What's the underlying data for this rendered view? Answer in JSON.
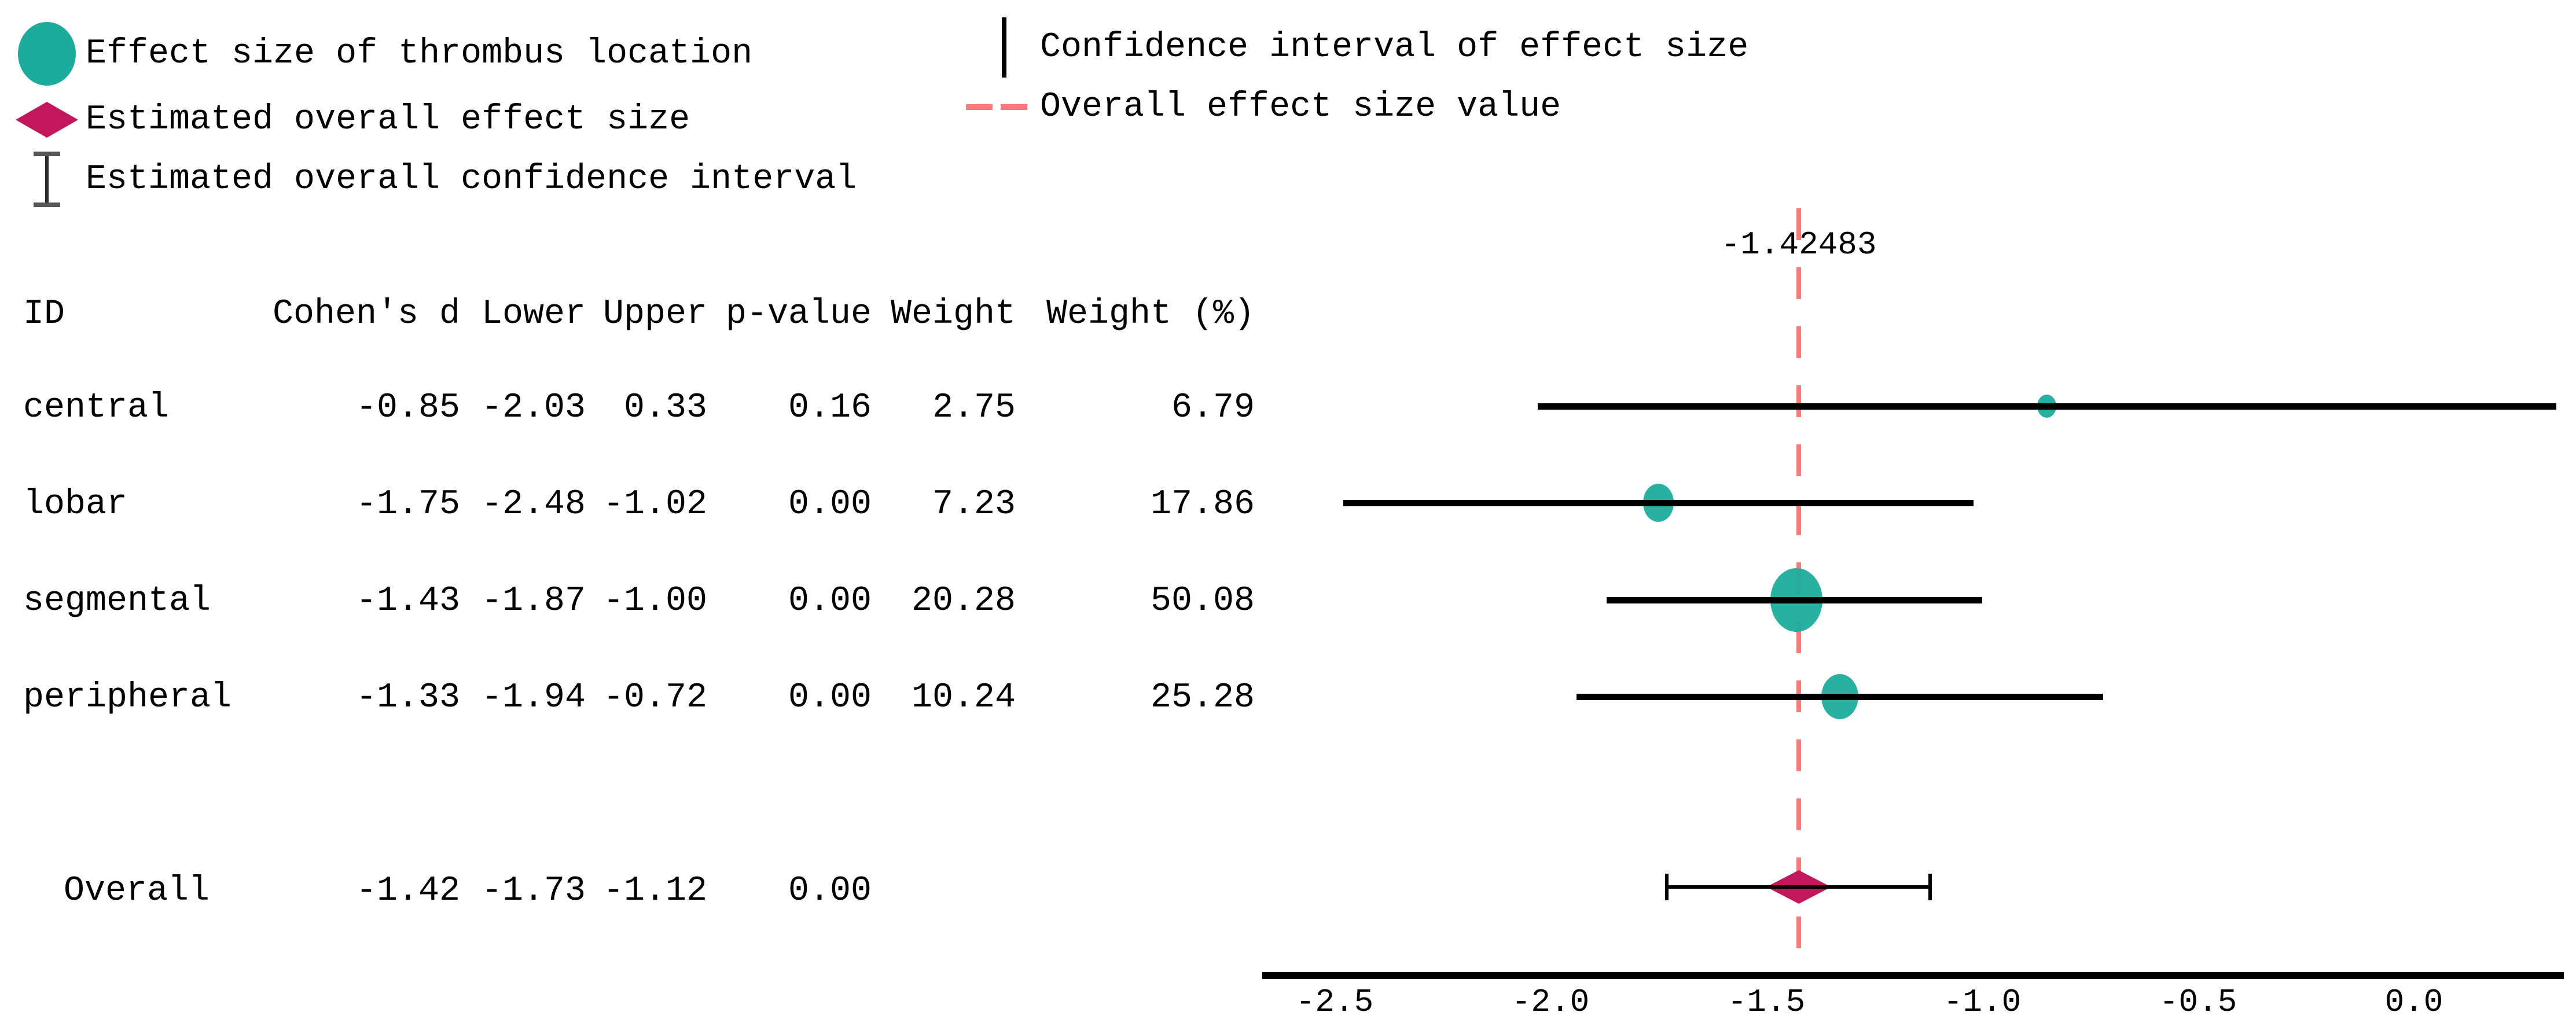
{
  "figure": {
    "background": "#ffffff"
  },
  "legend": {
    "left": [
      {
        "symbol": "effect-circle",
        "label": "Effect size of thrombus location"
      },
      {
        "symbol": "overall-diamond",
        "label": "Estimated overall effect size"
      },
      {
        "symbol": "overall-ci",
        "label": "Estimated overall confidence interval"
      }
    ],
    "right": [
      {
        "symbol": "ci-line",
        "label": "Confidence interval of effect size"
      },
      {
        "symbol": "overall-value-line",
        "label": "Overall effect size value"
      }
    ]
  },
  "colors": {
    "effect_marker": "#1cac9c",
    "overall_marker": "#c2185b",
    "overall_value_line": "#f97c7c",
    "ci_line": "#000000",
    "errorbar": "#2b2b2b",
    "text": "#000000"
  },
  "table": {
    "columns": [
      "ID",
      "Cohen's d",
      "Lower",
      "Upper",
      "p-value",
      "Weight",
      "Weight (%)"
    ]
  },
  "chart_data": {
    "type": "forest",
    "title": "",
    "xlabel": "",
    "x_ticks": [
      "-2.5",
      "-2.0",
      "-1.5",
      "-1.0",
      "-0.5",
      "0.0"
    ],
    "xlim": [
      -2.67,
      0.35
    ],
    "grid": false,
    "overall_value": -1.42483,
    "overall_annotation": "-1.42483",
    "studies": [
      {
        "id": "central",
        "cohens_d": "-0.85",
        "lower": "-2.03",
        "upper": "0.33",
        "p_value": "0.16",
        "weight": "2.75",
        "weight_pct": "6.79"
      },
      {
        "id": "lobar",
        "cohens_d": "-1.75",
        "lower": "-2.48",
        "upper": "-1.02",
        "p_value": "0.00",
        "weight": "7.23",
        "weight_pct": "17.86"
      },
      {
        "id": "segmental",
        "cohens_d": "-1.43",
        "lower": "-1.87",
        "upper": "-1.00",
        "p_value": "0.00",
        "weight": "20.28",
        "weight_pct": "50.08"
      },
      {
        "id": "peripheral",
        "cohens_d": "-1.33",
        "lower": "-1.94",
        "upper": "-0.72",
        "p_value": "0.00",
        "weight": "10.24",
        "weight_pct": "25.28"
      }
    ],
    "overall": {
      "id": "Overall",
      "cohens_d": "-1.42",
      "lower": "-1.73",
      "upper": "-1.12",
      "p_value": "0.00",
      "weight": "",
      "weight_pct": "",
      "is_overall": true
    }
  }
}
